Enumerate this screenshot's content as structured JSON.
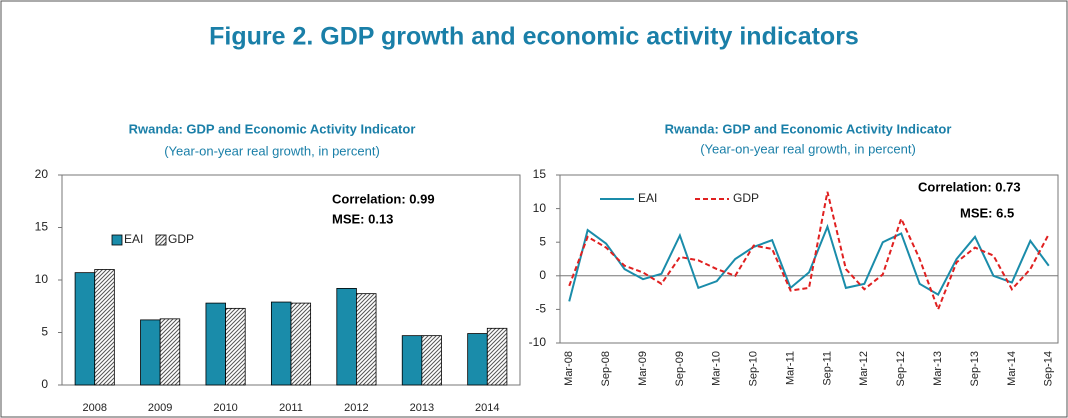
{
  "figure_title": "Figure 2. GDP growth and economic activity indicators",
  "chart_data": [
    {
      "type": "bar",
      "title": "Rwanda: GDP and Economic Activity Indicator",
      "subtitle": "(Year-on-year real growth, in percent)",
      "annotations": [
        "Correlation: 0.99",
        "MSE: 0.13"
      ],
      "categories": [
        "2008",
        "2009",
        "2010",
        "2011",
        "2012",
        "2013",
        "2014"
      ],
      "series": [
        {
          "name": "EAI",
          "color": "#1a8caa",
          "values": [
            10.7,
            6.2,
            7.8,
            7.9,
            9.2,
            4.7,
            4.9
          ]
        },
        {
          "name": "GDP",
          "color": "#555555",
          "values": [
            11.0,
            6.3,
            7.3,
            7.8,
            8.7,
            4.7,
            5.4
          ]
        }
      ],
      "ylim": [
        0,
        20
      ],
      "yticks": [
        0,
        5,
        10,
        15,
        20
      ],
      "legend": "upper left"
    },
    {
      "type": "line",
      "title": "Rwanda: GDP and Economic Activity Indicator",
      "subtitle": "(Year-on-year real growth, in percent)",
      "annotations": [
        "Correlation: 0.73",
        "MSE: 6.5"
      ],
      "categories": [
        "Mar-08",
        null,
        "Sep-08",
        null,
        "Mar-09",
        null,
        "Sep-09",
        null,
        "Mar-10",
        null,
        "Sep-10",
        null,
        "Mar-11",
        null,
        "Sep-11",
        null,
        "Mar-12",
        null,
        "Sep-12",
        null,
        "Mar-13",
        null,
        "Sep-13",
        null,
        "Mar-14",
        null,
        "Sep-14"
      ],
      "series": [
        {
          "name": "EAI",
          "color": "#1a8caa",
          "dash": false,
          "values": [
            -3.8,
            6.8,
            4.8,
            1.0,
            -0.5,
            0.3,
            6.0,
            -1.8,
            -0.8,
            2.5,
            4.3,
            5.3,
            -1.8,
            0.5,
            7.3,
            -1.8,
            -1.2,
            5.0,
            6.3,
            -1.2,
            -2.8,
            2.5,
            5.8,
            0,
            -1.0,
            5.2,
            1.5
          ]
        },
        {
          "name": "GDP",
          "color": "#e02020",
          "dash": true,
          "values": [
            -1.5,
            5.8,
            4.2,
            1.5,
            0.5,
            -1.2,
            2.8,
            2.3,
            1.0,
            0,
            4.5,
            4.0,
            -2.2,
            -1.8,
            12.5,
            1.0,
            -2.0,
            0.2,
            8.5,
            2.5,
            -5.0,
            2.0,
            4.2,
            3.0,
            -2.0,
            1.0,
            6.2
          ]
        }
      ],
      "ylim": [
        -10,
        15
      ],
      "yticks": [
        -10,
        -5,
        0,
        5,
        10,
        15
      ],
      "legend": "upper left"
    }
  ]
}
